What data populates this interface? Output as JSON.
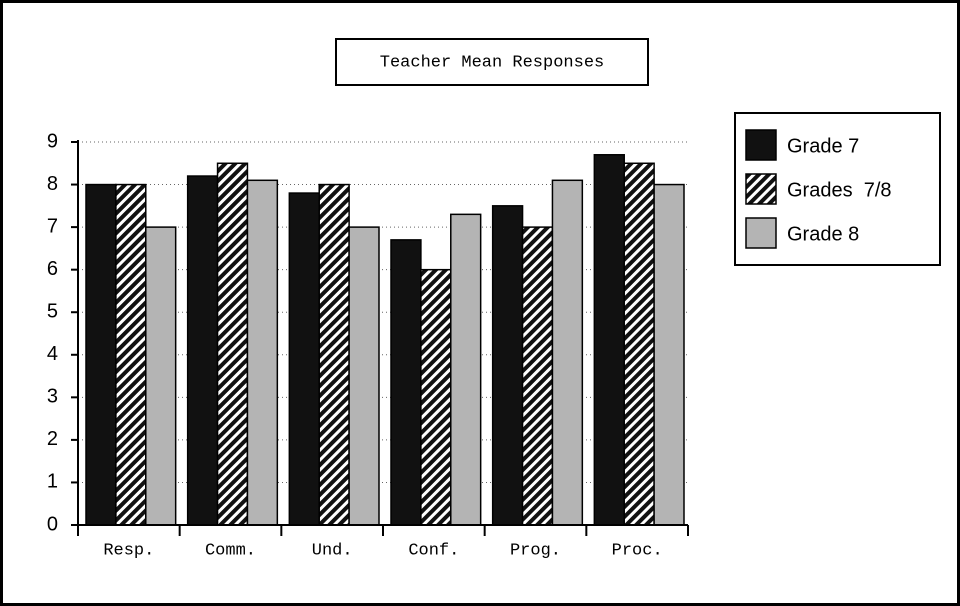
{
  "chart_data": {
    "type": "bar",
    "title": "Teacher Mean Responses",
    "categories": [
      "Resp.",
      "Comm.",
      "Und.",
      "Conf.",
      "Prog.",
      "Proc."
    ],
    "series": [
      {
        "name": "Grade 7",
        "color": "#111111",
        "pattern": "solid",
        "values": [
          8,
          8.2,
          7.8,
          6.7,
          7.5,
          8.7
        ]
      },
      {
        "name": "Grades  7/8",
        "color": "#111111",
        "pattern": "hatch",
        "values": [
          8,
          8.5,
          8,
          6,
          7,
          8.5
        ]
      },
      {
        "name": "Grade 8",
        "color": "#b4b4b4",
        "pattern": "solid",
        "values": [
          7,
          8.1,
          7,
          7.3,
          8.1,
          8
        ]
      }
    ],
    "ylim": [
      0,
      9
    ],
    "yticks": [
      0,
      1,
      2,
      3,
      4,
      5,
      6,
      7,
      8,
      9
    ],
    "grid": true,
    "legend": "right"
  }
}
